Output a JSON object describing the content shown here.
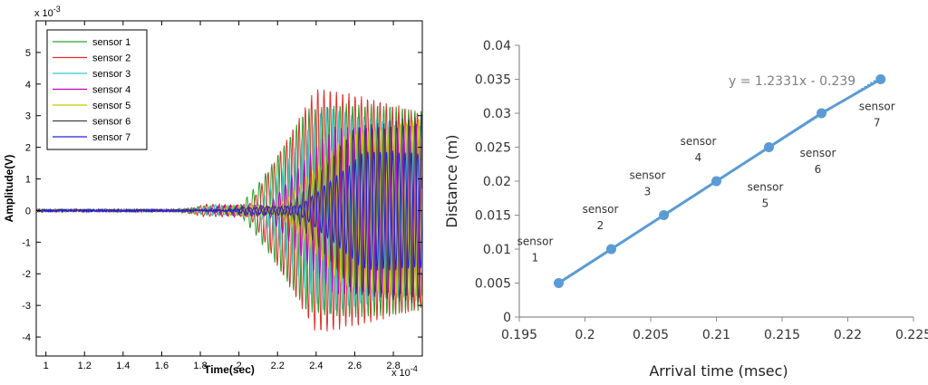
{
  "chart_data": [
    {
      "type": "line",
      "title": "",
      "xlabel": "Time(sec)",
      "ylabel": "Amplitude(V)",
      "x_exponent": "x 10",
      "x_exponent_power": "-4",
      "y_exponent": "x 10",
      "y_exponent_power": "-3",
      "xlim": [
        0.95,
        2.95
      ],
      "ylim": [
        -4.6,
        6.0
      ],
      "xticks": [
        "1",
        "1.2",
        "1.4",
        "1.6",
        "1.8",
        "2",
        "2.2",
        "2.4",
        "2.6",
        "2.8"
      ],
      "yticks": [
        "-4",
        "-3",
        "-2",
        "-1",
        "0",
        "1",
        "2",
        "3",
        "4",
        "5"
      ],
      "legend_position": "top-left",
      "series": [
        {
          "name": "sensor 1",
          "color": "#2ca02c",
          "arrival": 2.0,
          "amplitude": 3.3,
          "precursor": 0.12
        },
        {
          "name": "sensor 2",
          "color": "#e03030",
          "arrival": 2.05,
          "amplitude": 3.8,
          "precursor": 0.18
        },
        {
          "name": "sensor 3",
          "color": "#35c9c9",
          "arrival": 2.1,
          "amplitude": 3.7,
          "precursor": 0.16
        },
        {
          "name": "sensor 4",
          "color": "#c000c0",
          "arrival": 2.15,
          "amplitude": 3.6,
          "precursor": 0.15
        },
        {
          "name": "sensor 5",
          "color": "#c8c800",
          "arrival": 2.2,
          "amplitude": 3.2,
          "precursor": 0.14
        },
        {
          "name": "sensor 6",
          "color": "#404040",
          "arrival": 2.25,
          "amplitude": 2.9,
          "precursor": 0.13
        },
        {
          "name": "sensor 7",
          "color": "#2020e0",
          "arrival": 2.3,
          "amplitude": 1.8,
          "precursor": 0.12
        }
      ]
    },
    {
      "type": "scatter",
      "title": "y = 1.2331x - 0.239",
      "xlabel": "Arrival time (msec)",
      "ylabel": "Distance (m)",
      "xlim": [
        0.195,
        0.225
      ],
      "ylim": [
        0,
        0.04
      ],
      "xticks": [
        "0.195",
        "0.2",
        "0.205",
        "0.21",
        "0.215",
        "0.22",
        "0.225"
      ],
      "yticks": [
        "0",
        "0.005",
        "0.01",
        "0.015",
        "0.02",
        "0.025",
        "0.03",
        "0.035",
        "0.04"
      ],
      "color": "#5b9bd5",
      "trendline": {
        "slope": 1.2331,
        "intercept": -0.239
      },
      "points": [
        {
          "x": 0.198,
          "y": 0.005,
          "label": "sensor",
          "num": "1"
        },
        {
          "x": 0.202,
          "y": 0.01,
          "label": "sensor",
          "num": "2"
        },
        {
          "x": 0.206,
          "y": 0.015,
          "label": "sensor",
          "num": "3"
        },
        {
          "x": 0.21,
          "y": 0.02,
          "label": "sensor",
          "num": "4"
        },
        {
          "x": 0.214,
          "y": 0.025,
          "label": "sensor",
          "num": "5"
        },
        {
          "x": 0.218,
          "y": 0.03,
          "label": "sensor",
          "num": "6"
        },
        {
          "x": 0.2225,
          "y": 0.035,
          "label": "sensor",
          "num": "7"
        }
      ]
    }
  ]
}
